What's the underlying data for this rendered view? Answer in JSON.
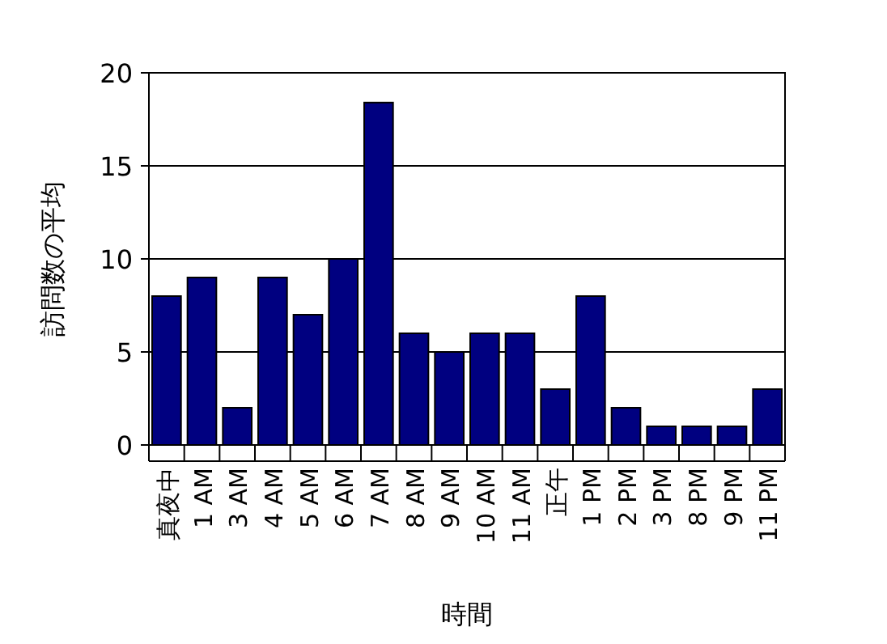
{
  "chart_data": {
    "type": "bar",
    "xlabel": "時間",
    "ylabel": "訪問数の平均",
    "categories": [
      "真夜中",
      "1 AM",
      "3 AM",
      "4 AM",
      "5 AM",
      "6 AM",
      "7 AM",
      "8 AM",
      "9 AM",
      "10 AM",
      "11 AM",
      "正午",
      "1 PM",
      "2 PM",
      "3 PM",
      "8 PM",
      "9 PM",
      "11 PM"
    ],
    "values": [
      8,
      9,
      2,
      9,
      7,
      10,
      18.4,
      6,
      5,
      6,
      6,
      3,
      8,
      2,
      1,
      1,
      1,
      3
    ],
    "color": "#000080",
    "ylim": [
      0,
      20
    ],
    "yticks": [
      0,
      5,
      10,
      15,
      20
    ],
    "grid": "y"
  }
}
